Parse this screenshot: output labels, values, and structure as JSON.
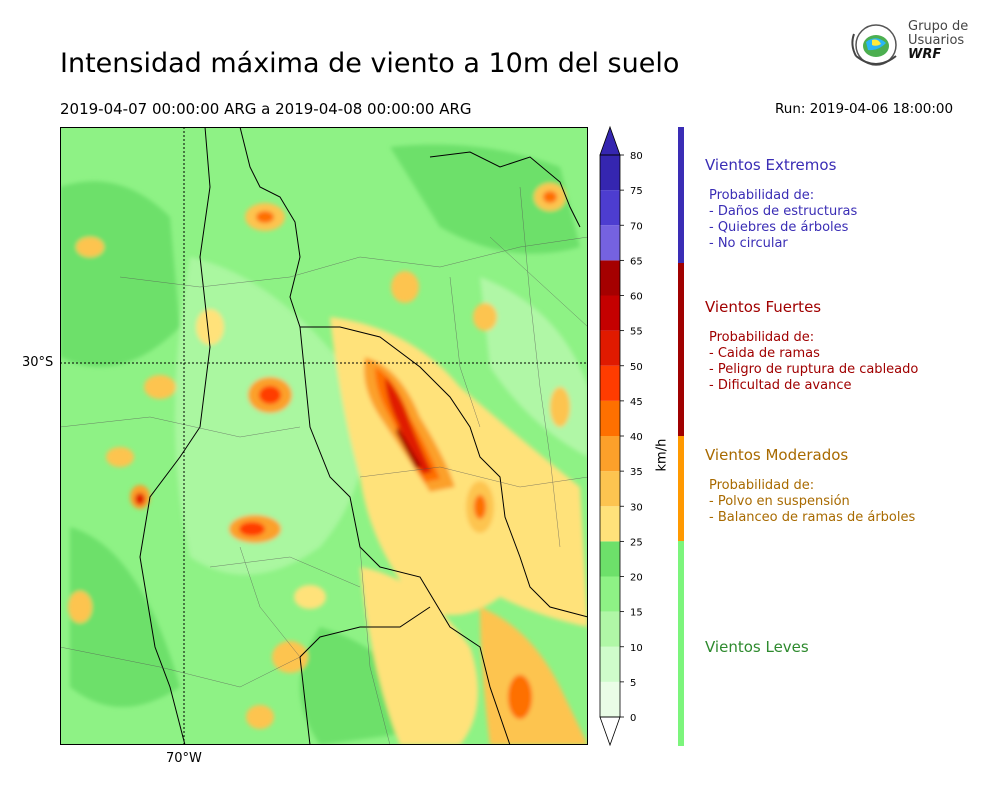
{
  "title": "Intensidad máxima de viento a 10m del suelo",
  "period": "2019-04-07 00:00:00 ARG  a  2019-04-08 00:00:00 ARG",
  "run": "Run: 2019-04-06 18:00:00",
  "logo": {
    "line1": "Grupo de",
    "line2": "Usuarios",
    "line3": "WRF"
  },
  "axes": {
    "lat_label": "30°S",
    "lon_label": "70°W"
  },
  "colorbar": {
    "unit": "km/h",
    "ticks": [
      "0",
      "5",
      "10",
      "15",
      "20",
      "25",
      "30",
      "35",
      "40",
      "45",
      "50",
      "55",
      "60",
      "65",
      "70",
      "75",
      "80"
    ],
    "colors": [
      "#eafde6",
      "#cffccb",
      "#b0f7a6",
      "#8ef285",
      "#6de06a",
      "#ffe27a",
      "#fdc450",
      "#fca02a",
      "#fe7000",
      "#ff3c00",
      "#e01a00",
      "#c40000",
      "#a50000",
      "#7562e0",
      "#4d3dd0",
      "#3526b0"
    ]
  },
  "categories": [
    {
      "title": "Vientos Extremos",
      "color": "#3a2db5",
      "subtitle": "Probabilidad de:",
      "items": [
        "- Daños de estructuras",
        "- Quiebres de árboles",
        "- No circular"
      ]
    },
    {
      "title": "Vientos Fuertes",
      "color": "#a00000",
      "subtitle": "Probabilidad de:",
      "items": [
        "- Caida de ramas",
        "- Peligro de ruptura de cableado",
        "- Dificultad de avance"
      ]
    },
    {
      "title": "Vientos Moderados",
      "color": "#a86a00",
      "subtitle": "Probabilidad de:",
      "items": [
        "- Polvo en suspensión",
        "- Balanceo de ramas de árboles"
      ]
    },
    {
      "title": "Vientos Leves",
      "color": "#2e8a2e",
      "subtitle": "",
      "items": []
    }
  ],
  "bar_colors": [
    "#3a2db5",
    "#a00000",
    "#ff9900",
    "#7cf57c"
  ]
}
